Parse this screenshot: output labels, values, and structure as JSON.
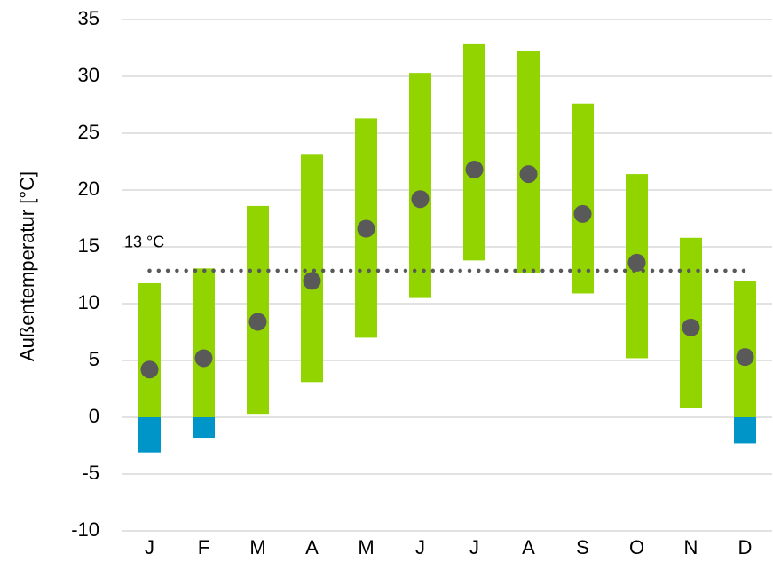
{
  "chart_data": {
    "type": "range_bar",
    "y_label": "Außentemperatur [°C]",
    "categories": [
      "J",
      "F",
      "M",
      "A",
      "M",
      "J",
      "J",
      "A",
      "S",
      "O",
      "N",
      "D"
    ],
    "high": [
      11.8,
      13.1,
      18.6,
      23.1,
      26.3,
      30.3,
      32.9,
      32.2,
      27.6,
      21.4,
      15.8,
      12.0
    ],
    "low": [
      -3.1,
      -1.8,
      0.3,
      3.1,
      7.0,
      10.5,
      13.8,
      12.7,
      10.9,
      5.2,
      0.8,
      -2.3
    ],
    "mean": [
      4.2,
      5.2,
      8.4,
      12.0,
      16.6,
      19.2,
      21.8,
      21.4,
      17.9,
      13.6,
      7.9,
      5.3
    ],
    "bar_color": "#92d400",
    "below_zero_color": "#0095c8",
    "dot_color": "#595959",
    "reference_line": {
      "value": 12.9,
      "label": "13 °C",
      "color": "#595959"
    },
    "ylim": [
      -10,
      35
    ],
    "yticks": [
      -10,
      -5,
      0,
      5,
      10,
      15,
      20,
      25,
      30,
      35
    ],
    "grid": true
  }
}
